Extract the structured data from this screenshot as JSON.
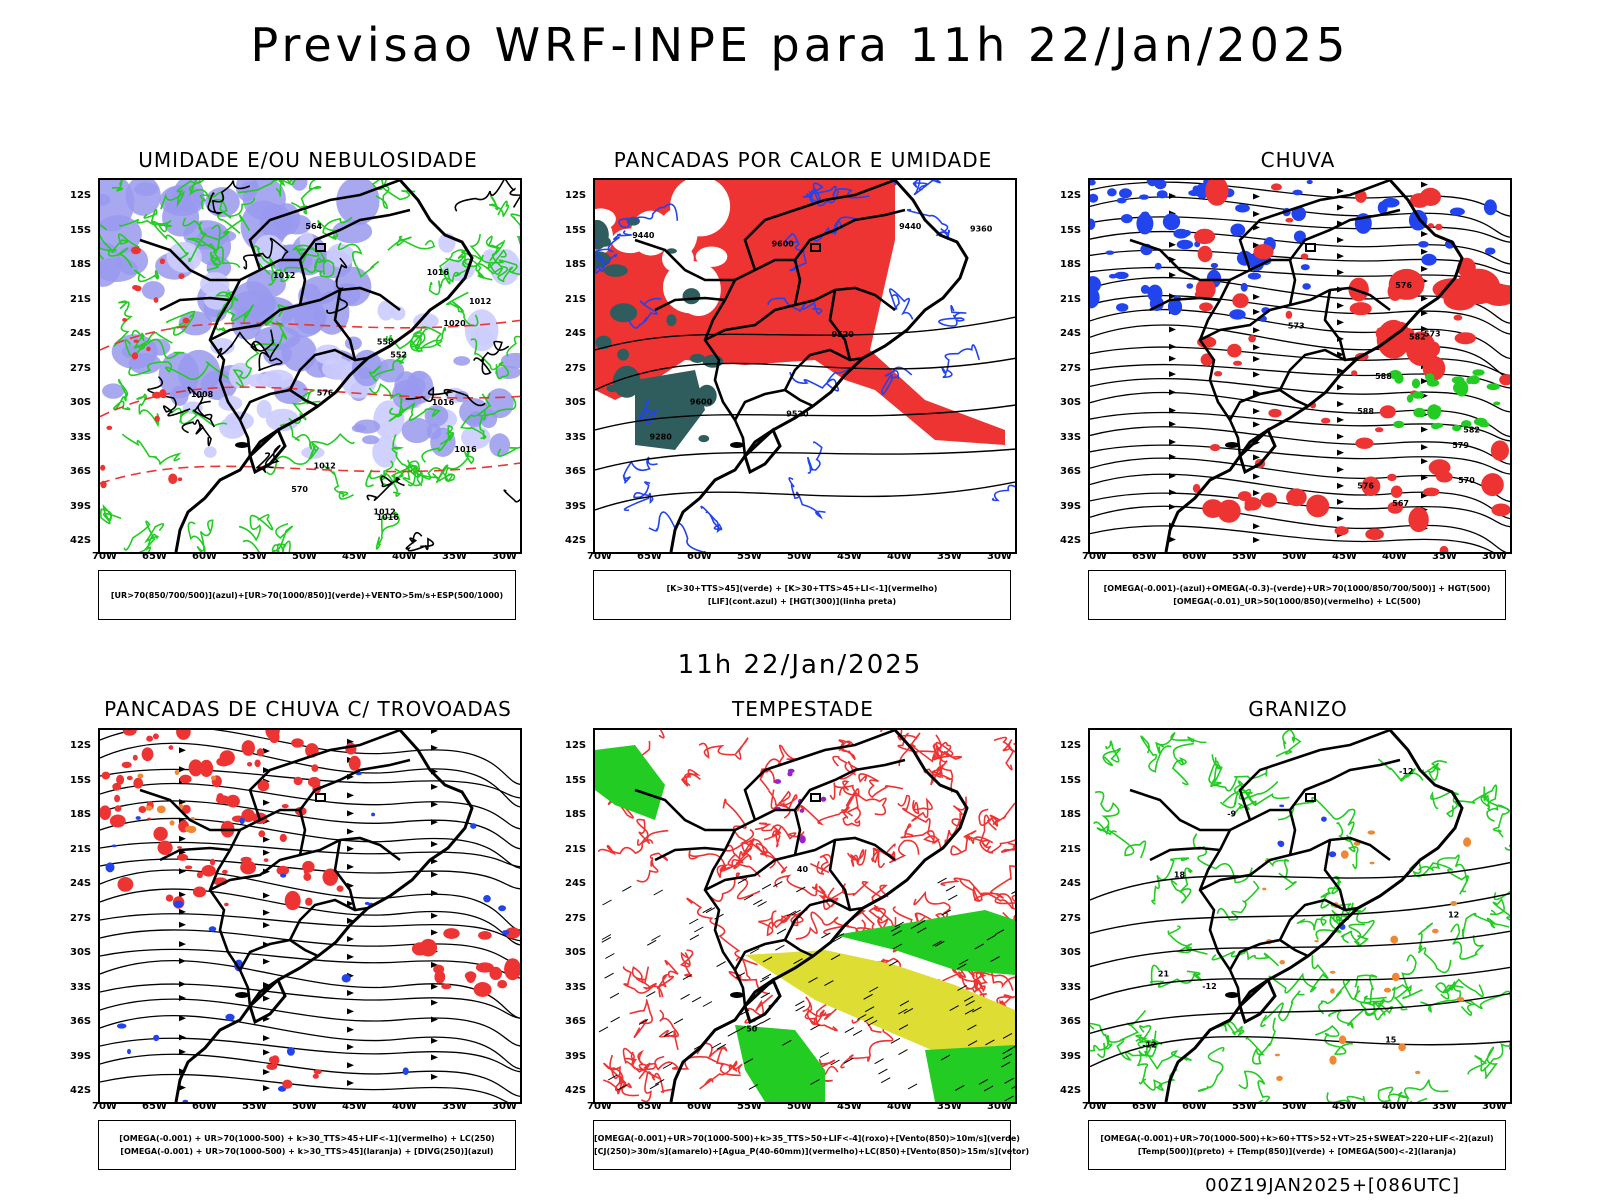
{
  "title": "Previsao WRF-INPE  para 11h 22/Jan/2025",
  "subtitle": "11h 22/Jan/2025",
  "footer": "00Z19JAN2025+[086UTC]",
  "lat_labels": [
    "12S",
    "15S",
    "18S",
    "21S",
    "24S",
    "27S",
    "30S",
    "33S",
    "36S",
    "39S",
    "42S"
  ],
  "lon_labels": [
    "70W",
    "65W",
    "60W",
    "55W",
    "50W",
    "45W",
    "40W",
    "35W",
    "30W"
  ],
  "panels": [
    {
      "title": "UMIDADE E/OU NEBULOSIDADE",
      "legend": [
        "[UR>70(850/700/500)](azul)+[UR>70(1000/850)](verde)+VENTO>5m/s+ESP(500/1000)"
      ],
      "contour_labels": [
        "1016",
        "1016",
        "1016",
        "1020",
        "1012",
        "1012",
        "1012",
        "1008",
        "576",
        "570",
        "564",
        "558",
        "552",
        "1016",
        "1012"
      ]
    },
    {
      "title": "PANCADAS POR CALOR E UMIDADE",
      "legend": [
        "[K>30+TTS>45](verde)  +  [K>30+TTS>45+LI<-1](vermelho)",
        "[LIF](cont.azul)  +  [HGT(300)](linha preta)"
      ],
      "contour_labels": [
        "9600",
        "9600",
        "9520",
        "9520",
        "9440",
        "9440",
        "9360",
        "9280"
      ]
    },
    {
      "title": "CHUVA",
      "legend": [
        "[OMEGA(-0.001)-(azul)+OMEGA(-0.3)-(verde)+UR>70(1000/850/700/500)]  +  HGT(500)",
        "[OMEGA(-0.01)_UR>50(1000/850)(vermelho)  +  LC(500)"
      ],
      "contour_labels": [
        "588",
        "582",
        "582",
        "579",
        "576",
        "576",
        "573",
        "573",
        "570",
        "567",
        "588"
      ]
    },
    {
      "title": "PANCADAS DE CHUVA C/ TROVOADAS",
      "legend": [
        "[OMEGA(-0.001)  +  UR>70(1000-500)  +  k>30_TTS>45+LIF<-1](vermelho)  +  LC(250)",
        "[OMEGA(-0.001)  +  UR>70(1000-500)  +  k>30_TTS>45](laranja)  +  [DIVG(250)](azul)"
      ],
      "contour_labels": []
    },
    {
      "title": "TEMPESTADE",
      "legend": [
        "[OMEGA(-0.001)+UR>70(1000-500)+k>35_TTS>50+LIF<-4](roxo)+[Vento(850)>10m/s](verde)",
        "[CJ(250)>30m/s](amarelo)+[Agua_P(40-60mm)](vermelho)+LC(850)+[Vento(850)>15m/s](vetor)"
      ],
      "contour_labels": [
        "50",
        "40"
      ]
    },
    {
      "title": "GRANIZO",
      "legend": [
        "[OMEGA(-0.001)+UR>70(1000-500)+k>60+TTS>52+VT>25+SWEAT>220+LIF<-2](azul)",
        "[Temp(500)](preto)  +  [Temp(850)](verde)  +  [OMEGA(500)<-2](laranja)"
      ],
      "contour_labels": [
        "-12",
        "-12",
        "-9",
        "15",
        "18",
        "21",
        "12",
        "-12"
      ]
    }
  ],
  "colors": {
    "blue_fill": "#9999ee",
    "green": "#22cc22",
    "red": "#ee3333",
    "yellow": "#dddd33",
    "dark_teal": "#2f5c5c",
    "orange": "#ee8833",
    "purple": "#9922cc",
    "blue_line": "#2244ee"
  }
}
